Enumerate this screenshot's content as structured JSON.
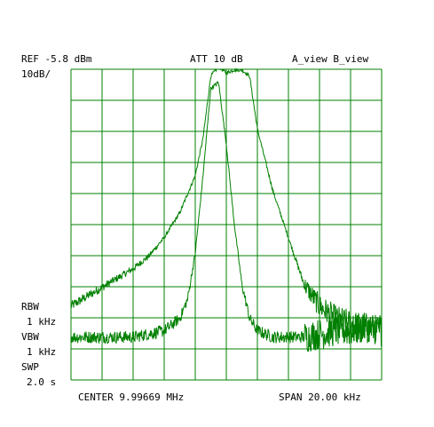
{
  "header": {
    "ref_level": "REF -5.8 dBm",
    "attenuation": "ATT 10 dB",
    "views": "A_view B_view",
    "scale": "10dB/"
  },
  "settings": {
    "rbw_label": "RBW",
    "rbw_value": "1 kHz",
    "vbw_label": "VBW",
    "vbw_value": "1 kHz",
    "swp_label": "SWP",
    "swp_value": "2.0 s"
  },
  "footer": {
    "center": "CENTER 9.99669 MHz",
    "span": "SPAN 20.00 kHz"
  },
  "colors": {
    "grid": "#008000",
    "trace": "#008000",
    "background": "#ffffff",
    "text": "#000000"
  },
  "chart_data": {
    "type": "line",
    "grid": true,
    "x_divisions": 10,
    "y_divisions": 10,
    "reference_level_dbm": -5.8,
    "db_per_div": 10,
    "center_mhz": 9.99669,
    "span_khz": 20.0,
    "xlim_khz": [
      -10,
      10
    ],
    "ylim_dbm": [
      -105.8,
      -5.8
    ],
    "series": [
      {
        "name": "A_view",
        "x_khz": [
          -10,
          -9,
          -8,
          -7,
          -6,
          -5,
          -4,
          -3,
          -2,
          -1.5,
          -1,
          -0.5,
          0,
          0.5,
          1,
          1.5,
          2,
          3,
          4,
          5,
          6,
          7,
          8,
          9,
          10
        ],
        "y_dbm": [
          -82,
          -79,
          -76,
          -73,
          -70,
          -66,
          -60,
          -52,
          -40,
          -28,
          -8,
          -5,
          -7,
          -6,
          -6,
          -8,
          -25,
          -45,
          -60,
          -75,
          -82,
          -86,
          -88,
          -89,
          -90
        ]
      },
      {
        "name": "B_view",
        "x_khz": [
          -10,
          -9,
          -8,
          -7,
          -6,
          -5,
          -4,
          -3,
          -2.5,
          -2,
          -1.5,
          -1,
          -0.5,
          0,
          0.5,
          1,
          1.5,
          2,
          3,
          4,
          5,
          6,
          7,
          8,
          9,
          10
        ],
        "y_dbm": [
          -92,
          -92,
          -92,
          -92,
          -92,
          -91,
          -90,
          -86,
          -80,
          -65,
          -40,
          -12,
          -10,
          -30,
          -55,
          -75,
          -86,
          -90,
          -92,
          -92,
          -92,
          -91,
          -90,
          -90,
          -89,
          -89
        ]
      }
    ]
  }
}
